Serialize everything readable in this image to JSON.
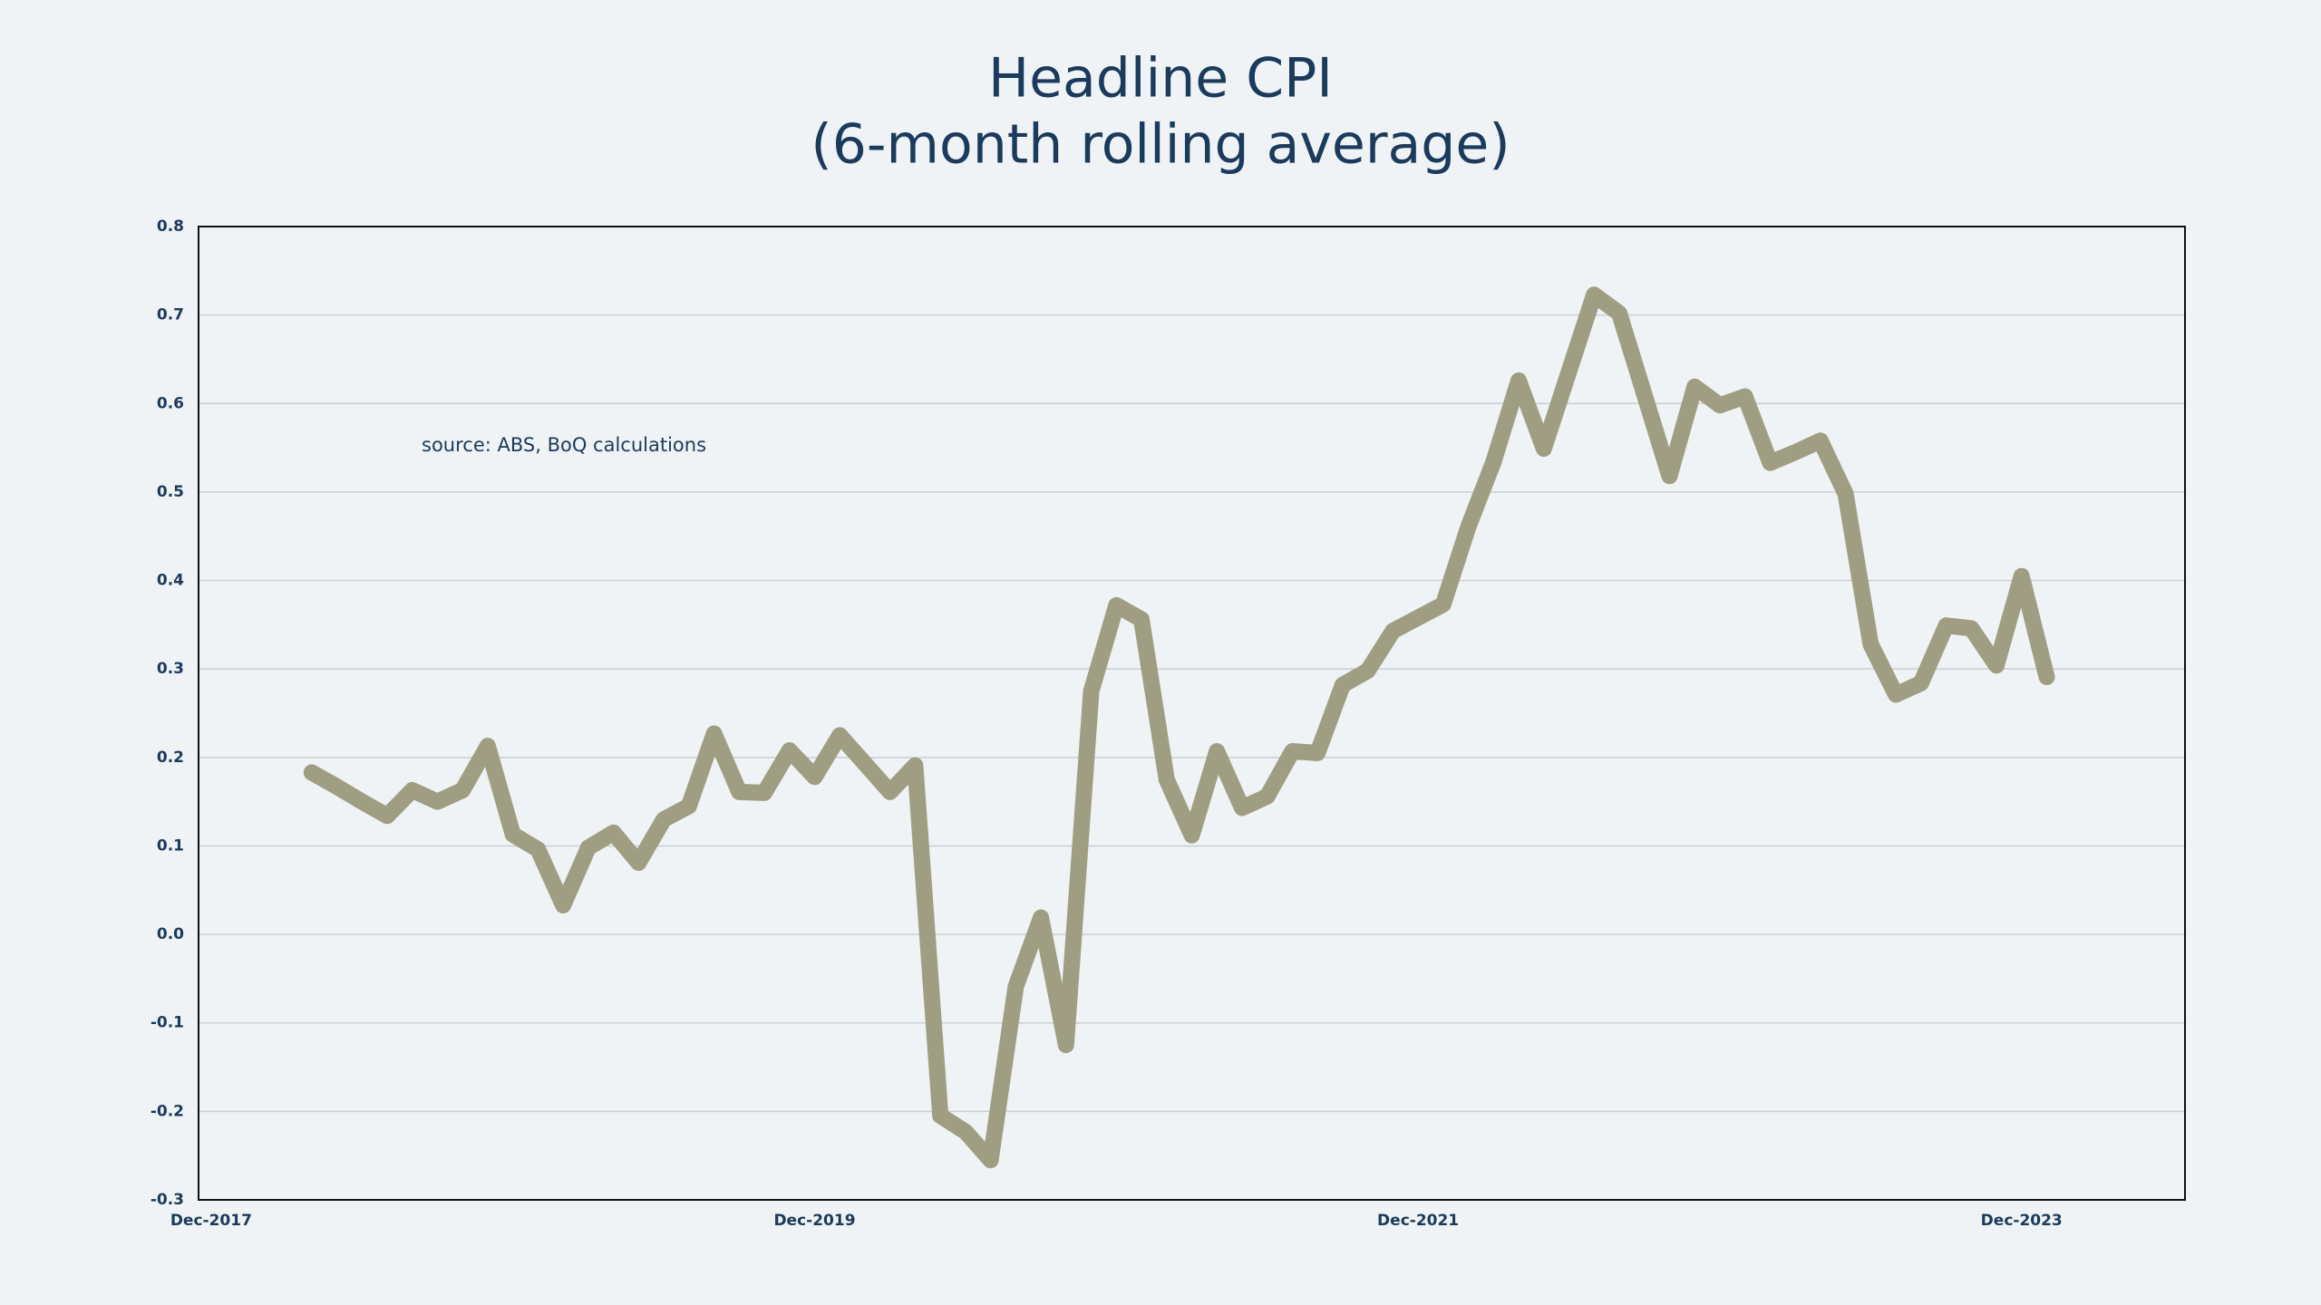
{
  "chart_data": {
    "type": "line",
    "title": "Headline CPI",
    "subtitle": "(6-month rolling average)",
    "annotation": "source: ABS, BoQ calculations",
    "categories": [
      "Dec-2017",
      null,
      null,
      null,
      null,
      null,
      null,
      null,
      null,
      null,
      null,
      null,
      null,
      null,
      null,
      null,
      null,
      null,
      null,
      null,
      null,
      null,
      null,
      null,
      "Dec-2019",
      null,
      null,
      null,
      null,
      null,
      null,
      null,
      null,
      null,
      null,
      null,
      null,
      null,
      null,
      null,
      null,
      null,
      null,
      null,
      null,
      null,
      null,
      null,
      "Dec-2021",
      null,
      null,
      null,
      null,
      null,
      null,
      null,
      null,
      null,
      null,
      null,
      null,
      null,
      null,
      null,
      null,
      null,
      null,
      null,
      null,
      null,
      null,
      null,
      "Dec-2023",
      null,
      null,
      null,
      null,
      null,
      null
    ],
    "series": [
      {
        "name": "Headline CPI",
        "color": "#a09e82",
        "values": [
          null,
          null,
          null,
          null,
          0.183,
          0.167,
          0.15,
          0.134,
          0.163,
          0.15,
          0.163,
          0.213,
          0.113,
          0.096,
          0.033,
          0.098,
          0.115,
          0.081,
          0.13,
          0.145,
          0.227,
          0.161,
          0.16,
          0.208,
          0.178,
          0.225,
          0.193,
          0.161,
          0.191,
          -0.205,
          -0.223,
          -0.255,
          -0.059,
          0.019,
          -0.125,
          0.275,
          0.372,
          0.356,
          0.175,
          0.112,
          0.207,
          0.143,
          0.156,
          0.207,
          0.205,
          0.282,
          0.298,
          0.343,
          0.358,
          0.373,
          0.461,
          0.534,
          0.626,
          0.549,
          0.636,
          0.723,
          0.702,
          0.61,
          0.518,
          0.619,
          0.598,
          0.608,
          0.533,
          0.545,
          0.558,
          0.498,
          0.328,
          0.271,
          0.284,
          0.349,
          0.346,
          0.304,
          0.405,
          0.291,
          null,
          null,
          null,
          null,
          null
        ]
      }
    ],
    "ylim": [
      -0.3,
      0.8
    ],
    "yticks": [
      -0.3,
      -0.2,
      -0.1,
      {
        "value": 0,
        "label": "0.0"
      },
      0.1,
      0.2,
      0.3,
      0.4,
      0.5,
      0.6,
      0.7,
      0.8
    ],
    "grid": true
  }
}
